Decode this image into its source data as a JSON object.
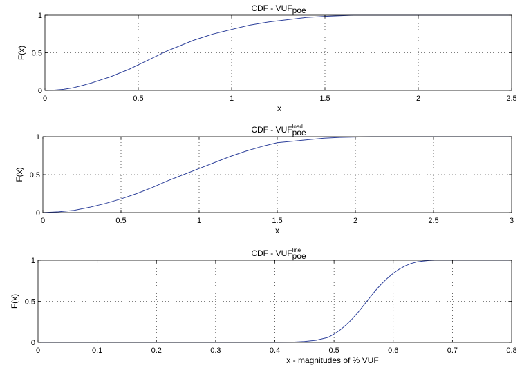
{
  "colors": {
    "line": "#2c3f9a",
    "axes": "#000000",
    "background": "#ffffff"
  },
  "chart_data": [
    {
      "type": "line",
      "title": {
        "base": "CDF - VUF",
        "sub": "poe",
        "sup": ""
      },
      "xlabel": "x",
      "ylabel": "F(x)",
      "xlim": [
        0,
        2.5
      ],
      "ylim": [
        0,
        1
      ],
      "xticks": [
        0,
        0.5,
        1,
        1.5,
        2,
        2.5
      ],
      "yticks": [
        0,
        0.5,
        1
      ],
      "xtick_labels": [
        "0",
        "0.5",
        "1",
        "1.5",
        "2",
        "2.5"
      ],
      "ytick_labels": [
        "0",
        "0.5",
        "1"
      ],
      "grid": true,
      "series": [
        {
          "x": [
            0,
            0.05,
            0.1,
            0.15,
            0.2,
            0.25,
            0.3,
            0.35,
            0.4,
            0.45,
            0.5,
            0.55,
            0.6,
            0.65,
            0.7,
            0.75,
            0.8,
            0.85,
            0.9,
            0.95,
            1.0,
            1.05,
            1.1,
            1.15,
            1.2,
            1.3,
            1.4,
            1.5,
            1.6,
            1.65,
            1.8,
            2.0,
            2.2,
            2.5
          ],
          "y": [
            0,
            0.005,
            0.015,
            0.035,
            0.065,
            0.1,
            0.14,
            0.18,
            0.23,
            0.28,
            0.34,
            0.4,
            0.46,
            0.52,
            0.57,
            0.62,
            0.67,
            0.71,
            0.75,
            0.78,
            0.81,
            0.84,
            0.87,
            0.89,
            0.91,
            0.94,
            0.97,
            0.985,
            0.995,
            1.0,
            1.0,
            1.0,
            1.0,
            1.0
          ]
        }
      ]
    },
    {
      "type": "line",
      "title": {
        "base": "CDF - VUF",
        "sub": "poe",
        "sup": "load"
      },
      "xlabel": "x",
      "ylabel": "F(x)",
      "xlim": [
        0,
        3
      ],
      "ylim": [
        0,
        1
      ],
      "xticks": [
        0,
        0.5,
        1,
        1.5,
        2,
        2.5,
        3
      ],
      "yticks": [
        0,
        0.5,
        1
      ],
      "xtick_labels": [
        "0",
        "0.5",
        "1",
        "1.5",
        "2",
        "2.5",
        "3"
      ],
      "ytick_labels": [
        "0",
        "0.5",
        "1"
      ],
      "grid": true,
      "series": [
        {
          "x": [
            0,
            0.1,
            0.2,
            0.3,
            0.4,
            0.5,
            0.6,
            0.7,
            0.8,
            0.9,
            1.0,
            1.1,
            1.2,
            1.3,
            1.4,
            1.5,
            1.6,
            1.7,
            1.8,
            1.9,
            2.0,
            2.1,
            2.5,
            3.0
          ],
          "y": [
            0,
            0.01,
            0.03,
            0.07,
            0.12,
            0.18,
            0.25,
            0.33,
            0.42,
            0.5,
            0.58,
            0.66,
            0.74,
            0.81,
            0.87,
            0.92,
            0.94,
            0.96,
            0.98,
            0.99,
            0.995,
            1.0,
            1.0,
            1.0
          ]
        }
      ]
    },
    {
      "type": "line",
      "title": {
        "base": "CDF - VUF",
        "sub": "poe",
        "sup": "line"
      },
      "xlabel": "x  - magnitudes of % VUF",
      "ylabel": "F(x)",
      "xlim": [
        0,
        0.8
      ],
      "ylim": [
        0,
        1
      ],
      "xticks": [
        0,
        0.1,
        0.2,
        0.3,
        0.4,
        0.5,
        0.6,
        0.7,
        0.8
      ],
      "yticks": [
        0,
        0.5,
        1
      ],
      "xtick_labels": [
        "0",
        "0.1",
        "0.2",
        "0.3",
        "0.4",
        "0.5",
        "0.6",
        "0.7",
        "0.8"
      ],
      "ytick_labels": [
        "0",
        "0.5",
        "1"
      ],
      "grid": true,
      "series": [
        {
          "x": [
            0,
            0.1,
            0.2,
            0.3,
            0.4,
            0.43,
            0.45,
            0.47,
            0.49,
            0.5,
            0.51,
            0.52,
            0.53,
            0.54,
            0.55,
            0.56,
            0.57,
            0.58,
            0.59,
            0.6,
            0.61,
            0.62,
            0.63,
            0.64,
            0.65,
            0.66,
            0.67,
            0.7,
            0.75,
            0.8
          ],
          "y": [
            0,
            0,
            0,
            0,
            0,
            0.003,
            0.01,
            0.025,
            0.06,
            0.1,
            0.15,
            0.21,
            0.28,
            0.36,
            0.45,
            0.54,
            0.63,
            0.71,
            0.78,
            0.84,
            0.89,
            0.93,
            0.96,
            0.98,
            0.99,
            0.997,
            1.0,
            1.0,
            1.0,
            1.0
          ]
        }
      ]
    }
  ]
}
